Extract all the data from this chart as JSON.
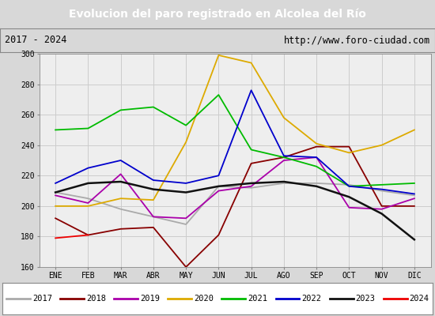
{
  "title": "Evolucion del paro registrado en Alcolea del Río",
  "subtitle_left": "2017 - 2024",
  "subtitle_right": "http://www.foro-ciudad.com",
  "months": [
    "ENE",
    "FEB",
    "MAR",
    "ABR",
    "MAY",
    "JUN",
    "JUL",
    "AGO",
    "SEP",
    "OCT",
    "NOV",
    "DIC"
  ],
  "ylim": [
    160,
    300
  ],
  "yticks": [
    160,
    180,
    200,
    220,
    240,
    260,
    280,
    300
  ],
  "series": {
    "2017": {
      "color": "#aaaaaa",
      "values": [
        209,
        205,
        198,
        193,
        188,
        213,
        212,
        215,
        215,
        214,
        210,
        207
      ]
    },
    "2018": {
      "color": "#880000",
      "values": [
        192,
        181,
        185,
        186,
        160,
        181,
        228,
        232,
        239,
        239,
        200,
        200
      ]
    },
    "2019": {
      "color": "#aa00aa",
      "values": [
        207,
        202,
        221,
        193,
        192,
        210,
        213,
        230,
        232,
        199,
        198,
        205
      ]
    },
    "2020": {
      "color": "#ddaa00",
      "values": [
        200,
        200,
        205,
        204,
        242,
        299,
        294,
        258,
        241,
        235,
        240,
        250
      ]
    },
    "2021": {
      "color": "#00bb00",
      "values": [
        250,
        251,
        263,
        265,
        253,
        273,
        237,
        232,
        226,
        213,
        214,
        215
      ]
    },
    "2022": {
      "color": "#0000cc",
      "values": [
        215,
        225,
        230,
        217,
        215,
        220,
        276,
        233,
        232,
        213,
        211,
        208
      ]
    },
    "2023": {
      "color": "#111111",
      "values": [
        209,
        215,
        216,
        211,
        209,
        213,
        215,
        216,
        213,
        206,
        195,
        178
      ]
    },
    "2024": {
      "color": "#ee0000",
      "values": [
        179,
        181,
        null,
        null,
        null,
        null,
        null,
        null,
        null,
        null,
        null,
        null
      ]
    }
  },
  "background_color": "#d8d8d8",
  "plot_bg_color": "#eeeeee",
  "title_bg_color": "#5599dd",
  "title_color": "#ffffff",
  "grid_color": "#cccccc",
  "legend_years": [
    "2017",
    "2018",
    "2019",
    "2020",
    "2021",
    "2022",
    "2023",
    "2024"
  ],
  "legend_colors": [
    "#aaaaaa",
    "#880000",
    "#aa00aa",
    "#ddaa00",
    "#00bb00",
    "#0000cc",
    "#111111",
    "#ee0000"
  ]
}
